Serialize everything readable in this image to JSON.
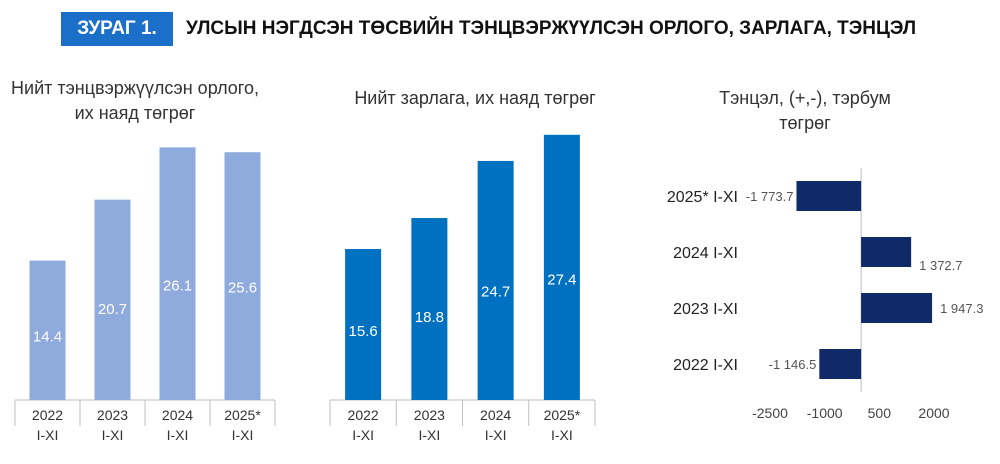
{
  "figure": {
    "label": "ЗУРАГ 1.",
    "title": "УЛСЫН НЭГДСЭН ТӨСВИЙН ТЭНЦВЭРЖҮҮЛСЭН ОРЛОГО, ЗАРЛАГА, ТЭНЦЭЛ"
  },
  "chart_data": [
    {
      "type": "bar",
      "title": "Нийт тэнцвэржүүлсэн орлого, их наяд төгрөг",
      "categories": [
        "2022 I-XI",
        "2023 I-XI",
        "2024 I-XI",
        "2025* I-XI"
      ],
      "values": [
        14.4,
        20.7,
        26.1,
        25.6
      ],
      "value_labels": [
        "14.4",
        "20.7",
        "26.1",
        "25.6"
      ],
      "color": "#8faadc",
      "ylim": [
        0,
        28
      ]
    },
    {
      "type": "bar",
      "title": "Нийт зарлага, их наяд төгрөг",
      "categories": [
        "2022 I-XI",
        "2023 I-XI",
        "2024 I-XI",
        "2025* I-XI"
      ],
      "values": [
        15.6,
        18.8,
        24.7,
        27.4
      ],
      "value_labels": [
        "15.6",
        "18.8",
        "24.7",
        "27.4"
      ],
      "color": "#0070c0",
      "ylim": [
        0,
        28
      ]
    },
    {
      "type": "bar",
      "orientation": "horizontal",
      "title": "Тэнцэл, (+,-), тэрбум төгрөг",
      "categories": [
        "2025* I-XI",
        "2024 I-XI",
        "2023 I-XI",
        "2022 I-XI"
      ],
      "values": [
        -1773.7,
        1372.7,
        1947.3,
        -1146.5
      ],
      "value_labels": [
        "-1 773.7",
        "1 372.7",
        "1 947.3",
        "-1 146.5"
      ],
      "color": "#0f2a66",
      "xlim": [
        -2500,
        2000
      ],
      "xticks": [
        "-2500",
        "-1000",
        "500",
        "2000"
      ]
    }
  ]
}
